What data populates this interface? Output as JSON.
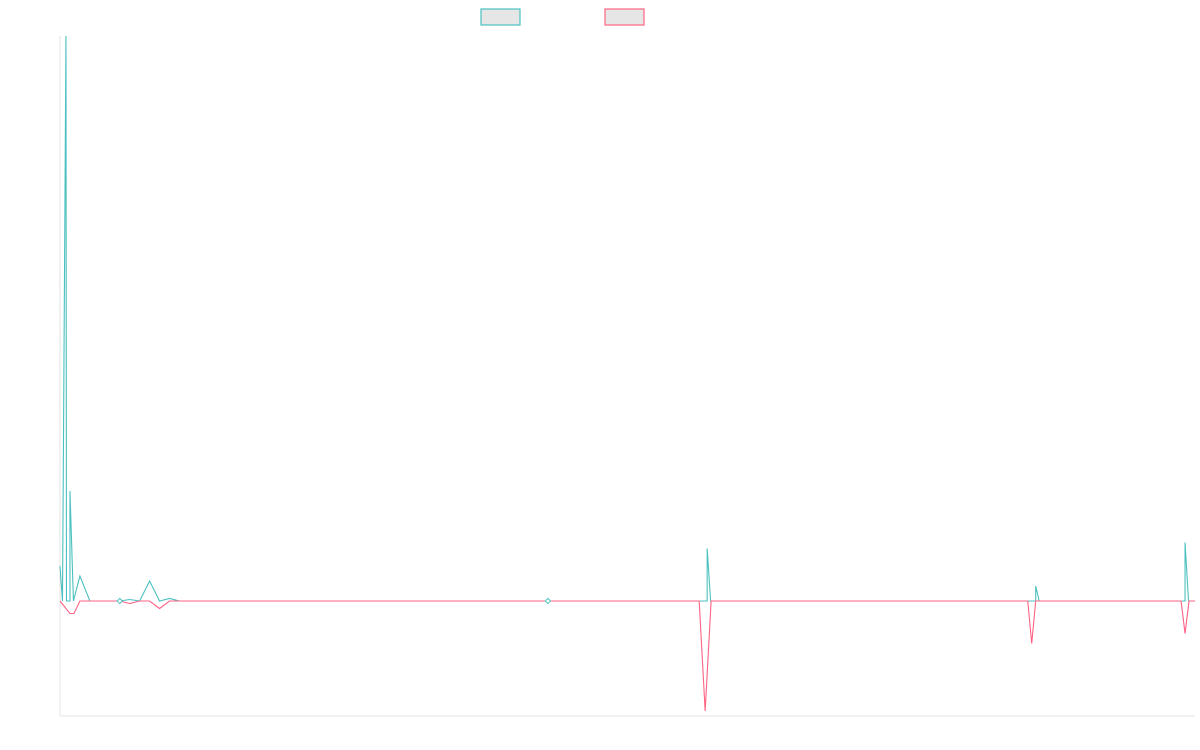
{
  "chart_data": {
    "type": "line",
    "title": "",
    "xlabel": "",
    "ylabel": "",
    "grid": false,
    "legend_position": "top-center",
    "x_count": 115,
    "ylim": [
      -23,
      113
    ],
    "series": [
      {
        "color": "#4bc0c0",
        "legend_fill": "#e6e6e6",
        "points": [
          [
            0,
            7
          ],
          [
            1,
            0
          ],
          [
            2,
            5
          ],
          [
            3,
            0
          ],
          [
            4,
            0
          ],
          [
            5,
            0
          ],
          [
            6,
            0
          ],
          [
            7,
            0.3
          ],
          [
            8,
            0
          ],
          [
            9,
            4
          ],
          [
            10,
            0
          ],
          [
            11,
            0.5
          ],
          [
            12,
            0
          ],
          [
            13,
            0
          ],
          [
            14,
            0
          ],
          [
            15,
            0
          ],
          [
            16,
            0
          ],
          [
            17,
            0
          ],
          [
            18,
            0
          ],
          [
            19,
            0
          ],
          [
            20,
            0
          ],
          [
            21,
            0
          ],
          [
            22,
            0
          ],
          [
            23,
            0
          ],
          [
            24,
            0
          ],
          [
            25,
            0
          ],
          [
            26,
            0
          ],
          [
            27,
            0
          ],
          [
            28,
            0
          ],
          [
            29,
            0
          ],
          [
            30,
            0
          ],
          [
            31,
            0
          ],
          [
            32,
            0
          ],
          [
            33,
            0
          ],
          [
            34,
            0
          ],
          [
            35,
            0
          ],
          [
            36,
            0
          ],
          [
            37,
            0
          ],
          [
            38,
            0
          ],
          [
            39,
            0
          ],
          [
            40,
            0
          ],
          [
            41,
            0
          ],
          [
            42,
            0
          ],
          [
            43,
            0
          ],
          [
            44,
            0
          ],
          [
            45,
            0
          ],
          [
            46,
            0
          ],
          [
            47,
            0
          ],
          [
            48,
            0
          ],
          [
            49,
            0
          ],
          [
            50,
            0
          ],
          [
            51,
            0
          ],
          [
            52,
            0
          ],
          [
            53,
            0
          ],
          [
            54,
            0
          ],
          [
            55,
            0
          ],
          [
            56,
            0
          ],
          [
            57,
            0
          ],
          [
            58,
            0
          ],
          [
            59,
            0
          ],
          [
            60,
            0
          ],
          [
            61,
            0
          ],
          [
            62,
            0
          ],
          [
            63,
            0
          ],
          [
            64,
            0
          ],
          [
            65,
            0
          ],
          [
            66,
            0
          ],
          [
            67,
            0
          ],
          [
            68,
            0
          ],
          [
            69,
            0
          ],
          [
            70,
            0
          ],
          [
            71,
            0
          ],
          [
            72,
            0
          ],
          [
            73,
            0
          ],
          [
            74,
            0
          ],
          [
            75,
            0
          ],
          [
            76,
            0
          ],
          [
            77,
            0
          ],
          [
            78,
            0
          ],
          [
            79,
            0
          ],
          [
            80,
            0
          ],
          [
            81,
            0
          ],
          [
            82,
            0
          ],
          [
            83,
            0
          ],
          [
            84,
            0
          ],
          [
            85,
            0
          ],
          [
            86,
            0
          ],
          [
            87,
            0
          ],
          [
            88,
            0
          ],
          [
            89,
            0
          ],
          [
            90,
            0
          ],
          [
            91,
            0
          ],
          [
            92,
            0
          ],
          [
            93,
            0
          ],
          [
            94,
            0
          ],
          [
            95,
            0
          ],
          [
            96,
            0
          ],
          [
            97,
            0
          ],
          [
            98,
            0
          ],
          [
            99,
            0
          ],
          [
            100,
            0
          ],
          [
            101,
            0
          ],
          [
            102,
            0
          ],
          [
            103,
            0
          ],
          [
            104,
            0
          ],
          [
            105,
            0
          ],
          [
            106,
            0
          ],
          [
            107,
            0
          ],
          [
            108,
            0
          ],
          [
            109,
            0
          ],
          [
            110,
            0
          ],
          [
            111,
            0
          ],
          [
            112,
            0
          ],
          [
            113,
            0
          ],
          [
            114,
            0
          ]
        ],
        "spikes": [
          [
            0.6,
            113
          ],
          [
            1.0,
            22
          ],
          [
            65,
            10.5
          ],
          [
            98,
            3
          ],
          [
            113,
            11.7
          ]
        ]
      },
      {
        "color": "#ff6384",
        "legend_fill": "#e6e6e6",
        "points": [
          [
            0,
            0
          ],
          [
            1,
            -2.5
          ],
          [
            1.4,
            -2.5
          ],
          [
            2,
            0
          ],
          [
            3,
            0
          ],
          [
            4,
            0
          ],
          [
            5,
            0
          ],
          [
            6,
            0
          ],
          [
            7,
            -0.5
          ],
          [
            8,
            0
          ],
          [
            9,
            0
          ],
          [
            10,
            -1.5
          ],
          [
            11,
            0
          ],
          [
            12,
            0
          ],
          [
            64.2,
            0
          ],
          [
            64.8,
            -22
          ],
          [
            65.4,
            0
          ],
          [
            97.2,
            0
          ],
          [
            97.6,
            -8.5
          ],
          [
            98.0,
            0
          ],
          [
            112.6,
            0
          ],
          [
            113.0,
            -6.5
          ],
          [
            113.4,
            0
          ],
          [
            114,
            0
          ]
        ]
      }
    ],
    "markers": [
      {
        "x": 6,
        "y": 0
      },
      {
        "x": 49,
        "y": 0
      }
    ]
  }
}
